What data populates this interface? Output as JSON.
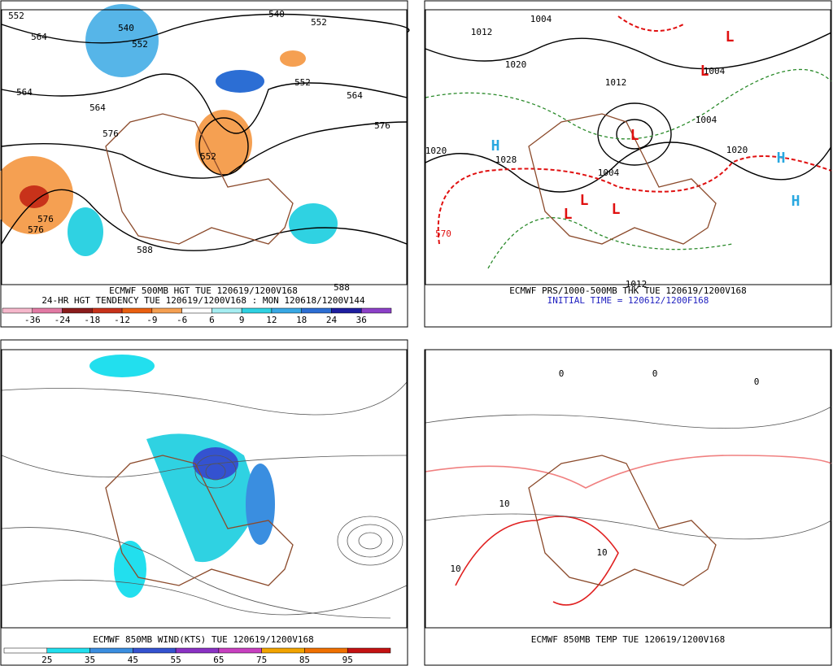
{
  "panels": [
    {
      "title": "ECMWF 500MB HGT TUE 120619/1200V168",
      "subtitle": "24-HR HGT TENDENCY TUE 120619/1200V168 : MON 120618/1200V144",
      "colorbar": {
        "labels": [
          -36,
          -24,
          -18,
          -12,
          -9,
          -6,
          6,
          9,
          12,
          18,
          24,
          36
        ],
        "colors": [
          "#f6b8cc",
          "#e27aa4",
          "#8b1c1c",
          "#c8321a",
          "#ea6010",
          "#f5a052",
          "#ffffff",
          "#a6eef2",
          "#2fd2e2",
          "#38a8e4",
          "#2c6ed4",
          "#1e1ea0",
          "#8c40c8"
        ]
      },
      "labels": [
        "552",
        "564",
        "540",
        "552",
        "540",
        "552",
        "564",
        "564",
        "576",
        "552",
        "564",
        "576",
        "552",
        "576",
        "576",
        "588",
        "588"
      ]
    },
    {
      "title": "ECMWF PRS/1000-500MB THK TUE 120619/1200V168",
      "subtitle": "INITIAL TIME = 120612/1200F168",
      "labels": [
        "1012",
        "1004",
        "1020",
        "1012",
        "1028",
        "1020",
        "1004",
        "1004",
        "1004",
        "1020",
        "570",
        "1012",
        "H",
        "H",
        "H",
        "L",
        "L",
        "L",
        "L",
        "L",
        "L"
      ]
    },
    {
      "title": "ECMWF 850MB WIND(KTS) TUE 120619/1200V168",
      "colorbar": {
        "labels": [
          25,
          35,
          45,
          55,
          65,
          75,
          85,
          95
        ],
        "colors": [
          "#ffffff",
          "#22dfee",
          "#3a8ee0",
          "#3452d0",
          "#8a32c4",
          "#c840c0",
          "#f2a400",
          "#f07000",
          "#c41212"
        ]
      }
    },
    {
      "title": "ECMWF 850MB TEMP TUE 120619/1200V168",
      "labels": [
        "0",
        "0",
        "0",
        "10",
        "10",
        "10"
      ]
    }
  ]
}
